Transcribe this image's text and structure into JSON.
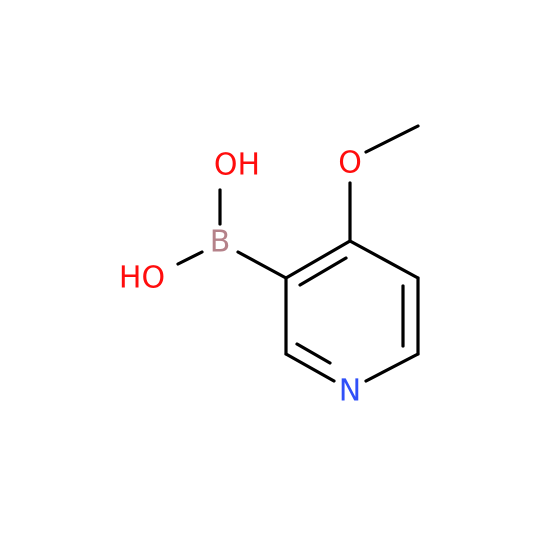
{
  "nodes": [
    {
      "label": "OH"
    },
    {
      "label": "HO"
    },
    {
      "label": "B"
    },
    {
      "label": "O"
    },
    {
      "label": "N"
    }
  ]
}
